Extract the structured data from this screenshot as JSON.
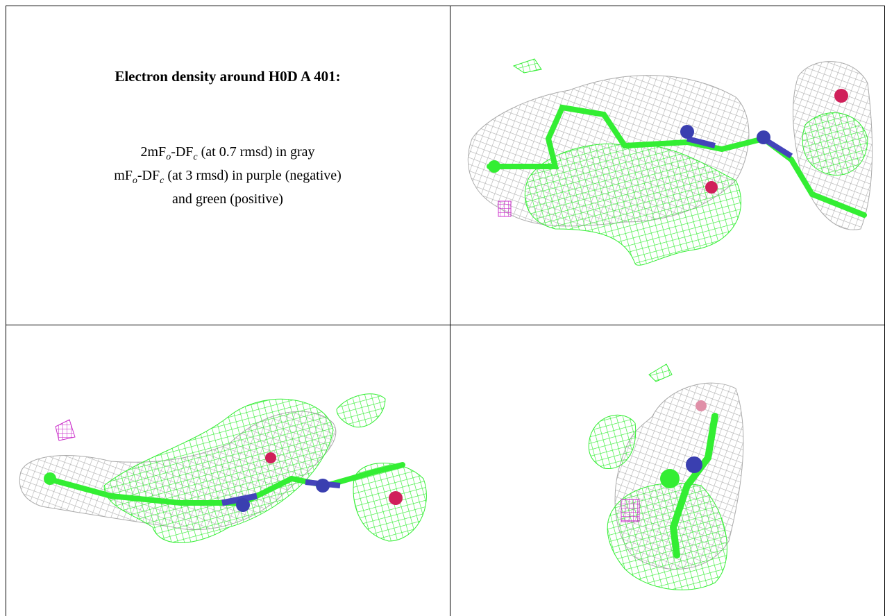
{
  "figure": {
    "title": "Electron density around H0D A 401:",
    "legend_lines": [
      [
        "2mF",
        "o",
        "-DF",
        "c",
        " (at 0.7 rmsd) in gray"
      ],
      [
        "mF",
        "o",
        "-DF",
        "c",
        " (at 3 rmsd) in purple (negative)"
      ],
      [
        "and green (positive)"
      ]
    ]
  }
}
